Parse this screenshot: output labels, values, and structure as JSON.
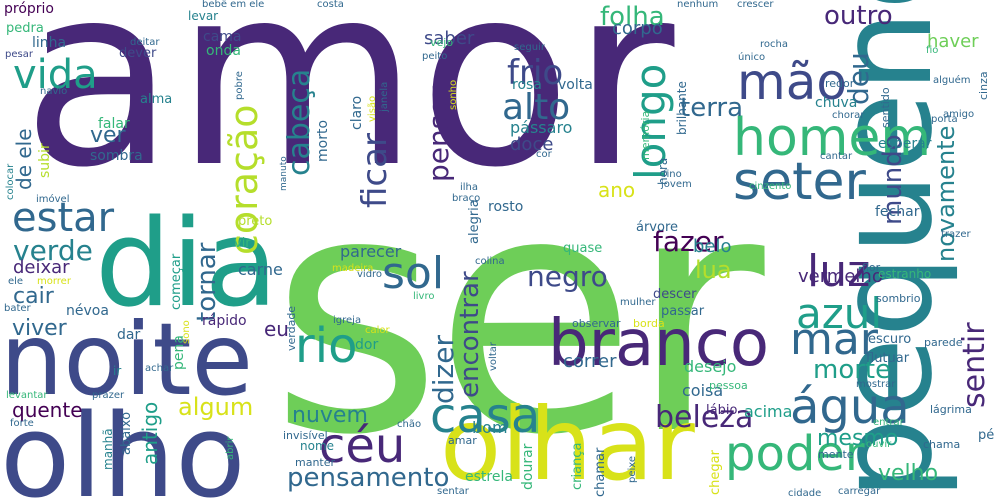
{
  "palette": {
    "purple": "#482878",
    "indigo": "#3e4a89",
    "blue": "#31688e",
    "teal": "#26828e",
    "green": "#1f9e89",
    "mint": "#35b779",
    "lime": "#6ece58",
    "yellowgreen": "#b5de2b",
    "yellow": "#d8e219",
    "dark": "#440154"
  },
  "words": [
    "amor",
    "ser",
    "pequeno",
    "dia",
    "noite",
    "olho",
    "olhar",
    "branco",
    "casa",
    "homem",
    "mão",
    "seter",
    "céu",
    "poder",
    "água",
    "coração",
    "vida",
    "estar",
    "rio",
    "sol",
    "luz",
    "mar",
    "azul",
    "longo",
    "alto",
    "frio",
    "cabeça",
    "ficar",
    "pensar",
    "beleza",
    "pensamento",
    "morte",
    "sentir",
    "dizer",
    "encontrar",
    "negro",
    "fazer",
    "lua",
    "tornar",
    "verde",
    "viver",
    "deixar",
    "cair",
    "quente",
    "algum",
    "nuvem",
    "antigo",
    "terra",
    "mundo",
    "deu",
    "novamente",
    "folha",
    "outro",
    "corpo",
    "haver",
    "saber",
    "ver",
    "de ele",
    "mesmo",
    "velho",
    "vermelho",
    "fechar",
    "parecer",
    "belo",
    "desejo",
    "correr",
    "coisa",
    "eu",
    "carne",
    "ano",
    "pássaro",
    "doce",
    "rosa",
    "volta",
    "acima",
    "bom",
    "estrela",
    "dor",
    "nome",
    "morto",
    "claro",
    "chuva",
    "esperar",
    "sombra",
    "falar",
    "alma",
    "cama",
    "onda",
    "linha",
    "pedra",
    "próprio",
    "dever",
    "levar",
    "subir",
    "vir",
    "preto",
    "começar",
    "rápido",
    "dar",
    "ir",
    "névoa",
    "pena",
    "flor",
    "árvore",
    "alegria",
    "rosto",
    "quase",
    "descer",
    "passar",
    "observar",
    "borda",
    "escuro",
    "sombrio",
    "parede",
    "flutuar",
    "lábio",
    "pessoa",
    "lágrima",
    "pé",
    "chama",
    "mente",
    "ouvir",
    "entrar",
    "chegar",
    "criança",
    "chamar",
    "dourar",
    "amar",
    "manter",
    "invisível",
    "chão",
    "abaixo",
    "manhã",
    "abrir",
    "forte",
    "levantar",
    "prazer",
    "bater",
    "ele",
    "morrer",
    "imóvel",
    "colocar",
    "navio",
    "pesar",
    "deitar",
    "bebê em ele",
    "costa",
    "nenhum",
    "crescer",
    "seguir",
    "peito",
    "vejo",
    "rocha",
    "único",
    "brilhante",
    "fio",
    "alguém",
    "cinza",
    "sentido",
    "redor",
    "amigo",
    "porta",
    "chorar",
    "hora",
    "memória",
    "sonho",
    "visão",
    "janela",
    "pobre",
    "fino",
    "jovem",
    "cinzento",
    "cantar",
    "cor",
    "ilha",
    "braço",
    "verdade",
    "madeira",
    "colina",
    "vidro",
    "livro",
    "igreja",
    "calor",
    "sono",
    "achar",
    "voltar",
    "mostrar",
    "peixe",
    "sentar",
    "cidade",
    "carregar",
    "trazer",
    "estranho",
    "mulher",
    "manuto"
  ]
}
